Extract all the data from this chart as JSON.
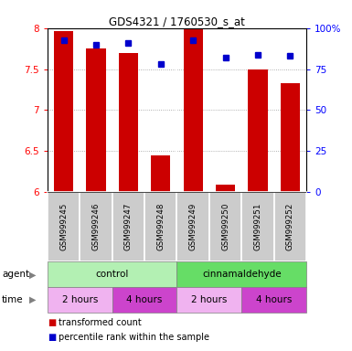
{
  "title": "GDS4321 / 1760530_s_at",
  "samples": [
    "GSM999245",
    "GSM999246",
    "GSM999247",
    "GSM999248",
    "GSM999249",
    "GSM999250",
    "GSM999251",
    "GSM999252"
  ],
  "red_values": [
    7.97,
    7.75,
    7.7,
    6.44,
    8.0,
    6.09,
    7.5,
    7.33
  ],
  "blue_values": [
    93,
    90,
    91,
    78,
    93,
    82,
    84,
    83
  ],
  "ylim_left": [
    6.0,
    8.0
  ],
  "ylim_right": [
    0,
    100
  ],
  "yticks_left": [
    6.0,
    6.5,
    7.0,
    7.5,
    8.0
  ],
  "yticks_right": [
    0,
    25,
    50,
    75,
    100
  ],
  "ytick_labels_left": [
    "6",
    "6.5",
    "7",
    "7.5",
    "8"
  ],
  "ytick_labels_right": [
    "0",
    "25",
    "50",
    "75",
    "100%"
  ],
  "agent_labels": [
    "control",
    "cinnamaldehyde"
  ],
  "agent_color_control": "#b3f0b3",
  "agent_color_cinnamaldehyde": "#66dd66",
  "time_color_2h": "#f0b3f0",
  "time_color_4h": "#cc44cc",
  "time_labels": [
    "2 hours",
    "4 hours",
    "2 hours",
    "4 hours"
  ],
  "bar_color": "#cc0000",
  "dot_color": "#0000cc",
  "grid_color": "#999999",
  "sample_bg": "#cccccc",
  "legend_red": "transformed count",
  "legend_blue": "percentile rank within the sample"
}
